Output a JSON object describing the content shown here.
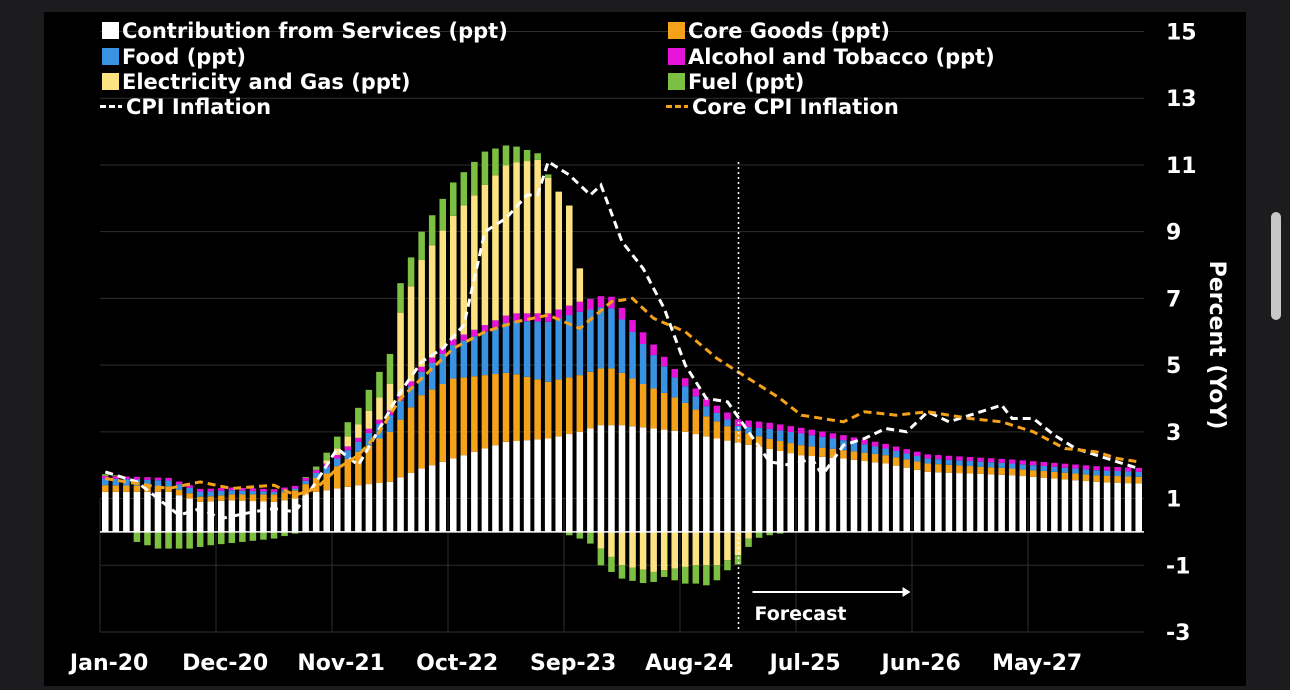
{
  "chart_data": {
    "type": "bar",
    "stacked": true,
    "ylabel": "Percent (YoY)",
    "ylim": [
      -3,
      15
    ],
    "yticks": [
      -3,
      -1,
      1,
      3,
      5,
      7,
      9,
      11,
      13,
      15
    ],
    "xticks": [
      "Jan-20",
      "Dec-20",
      "Nov-21",
      "Oct-22",
      "Sep-23",
      "Aug-24",
      "Jul-25",
      "Jun-26",
      "May-27"
    ],
    "n_periods": 99,
    "forecast_start_index": 60,
    "forecast_label": "Forecast",
    "series": [
      {
        "name": "Contribution from Services (ppt)",
        "color": "#ffffff",
        "kind": "bar",
        "knots": [
          [
            0,
            1.2
          ],
          [
            6,
            1.2
          ],
          [
            9,
            0.9
          ],
          [
            12,
            0.95
          ],
          [
            16,
            0.9
          ],
          [
            18,
            1.0
          ],
          [
            20,
            1.2
          ],
          [
            22,
            1.3
          ],
          [
            24,
            1.4
          ],
          [
            27,
            1.5
          ],
          [
            30,
            1.9
          ],
          [
            33,
            2.2
          ],
          [
            36,
            2.5
          ],
          [
            38,
            2.7
          ],
          [
            42,
            2.8
          ],
          [
            45,
            3.0
          ],
          [
            47,
            3.2
          ],
          [
            49,
            3.2
          ],
          [
            52,
            3.1
          ],
          [
            55,
            3.0
          ],
          [
            58,
            2.8
          ],
          [
            62,
            2.55
          ],
          [
            66,
            2.3
          ],
          [
            70,
            2.2
          ],
          [
            74,
            2.05
          ],
          [
            78,
            1.8
          ],
          [
            82,
            1.75
          ],
          [
            86,
            1.7
          ],
          [
            90,
            1.6
          ],
          [
            94,
            1.5
          ],
          [
            98,
            1.45
          ]
        ]
      },
      {
        "name": "Core Goods (ppt)",
        "color": "#f5a21b",
        "kind": "bar",
        "knots": [
          [
            0,
            0.2
          ],
          [
            10,
            0.15
          ],
          [
            18,
            0.25
          ],
          [
            21,
            0.5
          ],
          [
            24,
            1.0
          ],
          [
            27,
            1.5
          ],
          [
            30,
            2.2
          ],
          [
            33,
            2.4
          ],
          [
            36,
            2.2
          ],
          [
            39,
            2.0
          ],
          [
            42,
            1.7
          ],
          [
            45,
            1.7
          ],
          [
            48,
            1.7
          ],
          [
            51,
            1.3
          ],
          [
            54,
            1.0
          ],
          [
            57,
            0.6
          ],
          [
            60,
            0.35
          ],
          [
            63,
            0.3
          ],
          [
            66,
            0.3
          ],
          [
            70,
            0.25
          ],
          [
            78,
            0.25
          ],
          [
            86,
            0.2
          ],
          [
            98,
            0.2
          ]
        ]
      },
      {
        "name": "Food (ppt)",
        "color": "#3a93e2",
        "kind": "bar",
        "knots": [
          [
            0,
            0.2
          ],
          [
            10,
            0.15
          ],
          [
            18,
            0.05
          ],
          [
            21,
            0.2
          ],
          [
            24,
            0.3
          ],
          [
            27,
            0.5
          ],
          [
            30,
            0.7
          ],
          [
            33,
            1.0
          ],
          [
            36,
            1.3
          ],
          [
            39,
            1.6
          ],
          [
            42,
            1.8
          ],
          [
            45,
            1.9
          ],
          [
            48,
            1.8
          ],
          [
            51,
            1.2
          ],
          [
            54,
            0.6
          ],
          [
            57,
            0.3
          ],
          [
            60,
            0.15
          ],
          [
            63,
            0.3
          ],
          [
            66,
            0.35
          ],
          [
            70,
            0.3
          ],
          [
            74,
            0.2
          ],
          [
            78,
            0.15
          ],
          [
            86,
            0.15
          ],
          [
            98,
            0.15
          ]
        ]
      },
      {
        "name": "Alcohol and Tobacco (ppt)",
        "color": "#e614d9",
        "kind": "bar",
        "knots": [
          [
            0,
            0.08
          ],
          [
            18,
            0.08
          ],
          [
            24,
            0.12
          ],
          [
            30,
            0.15
          ],
          [
            36,
            0.2
          ],
          [
            42,
            0.25
          ],
          [
            48,
            0.35
          ],
          [
            51,
            0.35
          ],
          [
            54,
            0.25
          ],
          [
            60,
            0.2
          ],
          [
            70,
            0.15
          ],
          [
            80,
            0.12
          ],
          [
            98,
            0.12
          ]
        ]
      },
      {
        "name": "Electricity and Gas (ppt)",
        "color": "#fce281",
        "kind": "bar",
        "knots": [
          [
            0,
            0.0
          ],
          [
            20,
            0.0
          ],
          [
            22,
            0.2
          ],
          [
            24,
            0.4
          ],
          [
            27,
            0.8
          ],
          [
            28,
            2.5
          ],
          [
            30,
            3.2
          ],
          [
            33,
            3.7
          ],
          [
            36,
            4.2
          ],
          [
            38,
            4.5
          ],
          [
            41,
            4.6
          ],
          [
            44,
            3.0
          ],
          [
            45,
            1.0
          ],
          [
            46,
            0.0
          ],
          [
            47,
            -0.5
          ],
          [
            49,
            -1.0
          ],
          [
            52,
            -1.2
          ],
          [
            54,
            -1.1
          ],
          [
            56,
            -1.0
          ],
          [
            58,
            -1.0
          ],
          [
            60,
            -0.7
          ],
          [
            61,
            -0.2
          ],
          [
            62,
            0.0
          ],
          [
            98,
            0.0
          ]
        ]
      },
      {
        "name": "Fuel (ppt)",
        "color": "#7bc043",
        "kind": "bar",
        "knots": [
          [
            0,
            0.05
          ],
          [
            2,
            0.0
          ],
          [
            3,
            -0.3
          ],
          [
            5,
            -0.5
          ],
          [
            8,
            -0.5
          ],
          [
            10,
            -0.4
          ],
          [
            13,
            -0.3
          ],
          [
            16,
            -0.2
          ],
          [
            18,
            -0.05
          ],
          [
            20,
            0.1
          ],
          [
            22,
            0.35
          ],
          [
            24,
            0.5
          ],
          [
            27,
            0.9
          ],
          [
            30,
            0.85
          ],
          [
            33,
            1.0
          ],
          [
            36,
            1.0
          ],
          [
            38,
            0.6
          ],
          [
            41,
            0.2
          ],
          [
            43,
            0.0
          ],
          [
            45,
            -0.2
          ],
          [
            47,
            -0.5
          ],
          [
            49,
            -0.4
          ],
          [
            51,
            -0.4
          ],
          [
            53,
            -0.2
          ],
          [
            55,
            -0.5
          ],
          [
            57,
            -0.6
          ],
          [
            59,
            -0.3
          ],
          [
            61,
            -0.25
          ],
          [
            63,
            -0.1
          ],
          [
            65,
            0.0
          ],
          [
            98,
            0.0
          ]
        ]
      },
      {
        "name": "CPI Inflation",
        "color": "#ffffff",
        "kind": "line",
        "knots": [
          [
            0,
            1.8
          ],
          [
            3,
            1.5
          ],
          [
            5,
            1.0
          ],
          [
            7,
            0.5
          ],
          [
            9,
            0.7
          ],
          [
            11,
            0.4
          ],
          [
            14,
            0.6
          ],
          [
            16,
            0.7
          ],
          [
            18,
            0.6
          ],
          [
            20,
            1.5
          ],
          [
            22,
            2.5
          ],
          [
            24,
            2.0
          ],
          [
            26,
            3.1
          ],
          [
            28,
            4.2
          ],
          [
            30,
            5.1
          ],
          [
            32,
            5.5
          ],
          [
            34,
            6.2
          ],
          [
            36,
            9.0
          ],
          [
            38,
            9.4
          ],
          [
            40,
            10.1
          ],
          [
            41,
            10.1
          ],
          [
            42,
            11.1
          ],
          [
            44,
            10.7
          ],
          [
            46,
            10.1
          ],
          [
            47,
            10.4
          ],
          [
            49,
            8.7
          ],
          [
            51,
            7.9
          ],
          [
            53,
            6.7
          ],
          [
            55,
            5.0
          ],
          [
            57,
            4.0
          ],
          [
            59,
            3.9
          ],
          [
            61,
            3.0
          ],
          [
            63,
            2.1
          ],
          [
            65,
            2.0
          ],
          [
            67,
            2.2
          ],
          [
            68,
            1.7
          ],
          [
            70,
            2.6
          ],
          [
            72,
            2.8
          ],
          [
            74,
            3.1
          ],
          [
            76,
            3.0
          ],
          [
            78,
            3.6
          ],
          [
            80,
            3.3
          ],
          [
            82,
            3.5
          ],
          [
            84,
            3.7
          ],
          [
            85,
            3.8
          ],
          [
            86,
            3.4
          ],
          [
            88,
            3.4
          ],
          [
            90,
            2.9
          ],
          [
            92,
            2.5
          ],
          [
            98,
            1.9
          ]
        ]
      },
      {
        "name": "Core CPI Inflation",
        "color": "#f5a21b",
        "kind": "line",
        "knots": [
          [
            0,
            1.6
          ],
          [
            4,
            1.4
          ],
          [
            6,
            1.3
          ],
          [
            9,
            1.5
          ],
          [
            12,
            1.3
          ],
          [
            16,
            1.4
          ],
          [
            18,
            1.1
          ],
          [
            20,
            1.3
          ],
          [
            22,
            1.9
          ],
          [
            24,
            2.3
          ],
          [
            26,
            3.0
          ],
          [
            28,
            4.0
          ],
          [
            30,
            4.6
          ],
          [
            33,
            5.5
          ],
          [
            36,
            6.0
          ],
          [
            39,
            6.3
          ],
          [
            42,
            6.5
          ],
          [
            45,
            6.1
          ],
          [
            48,
            6.9
          ],
          [
            50,
            7.0
          ],
          [
            52,
            6.4
          ],
          [
            55,
            6.0
          ],
          [
            58,
            5.2
          ],
          [
            61,
            4.6
          ],
          [
            64,
            4.0
          ],
          [
            66,
            3.5
          ],
          [
            68,
            3.4
          ],
          [
            70,
            3.3
          ],
          [
            72,
            3.6
          ],
          [
            75,
            3.5
          ],
          [
            78,
            3.6
          ],
          [
            82,
            3.4
          ],
          [
            85,
            3.3
          ],
          [
            88,
            3.0
          ],
          [
            91,
            2.5
          ],
          [
            94,
            2.4
          ],
          [
            96,
            2.2
          ],
          [
            98,
            2.1
          ]
        ]
      }
    ],
    "cpi_line_label": "CPI Inflation",
    "core_line_label": "Core CPI Inflation"
  },
  "legend": [
    "Contribution from Services (ppt)",
    "Core Goods (ppt)",
    "Food (ppt)",
    "Alcohol and Tobacco (ppt)",
    "Electricity and Gas (ppt)",
    "Fuel (ppt)",
    "CPI Inflation",
    "Core CPI Inflation"
  ],
  "colors": {
    "background": "#000000",
    "page": "#1c1c1e",
    "grid": "#3a3a3a",
    "text": "#ffffff"
  }
}
